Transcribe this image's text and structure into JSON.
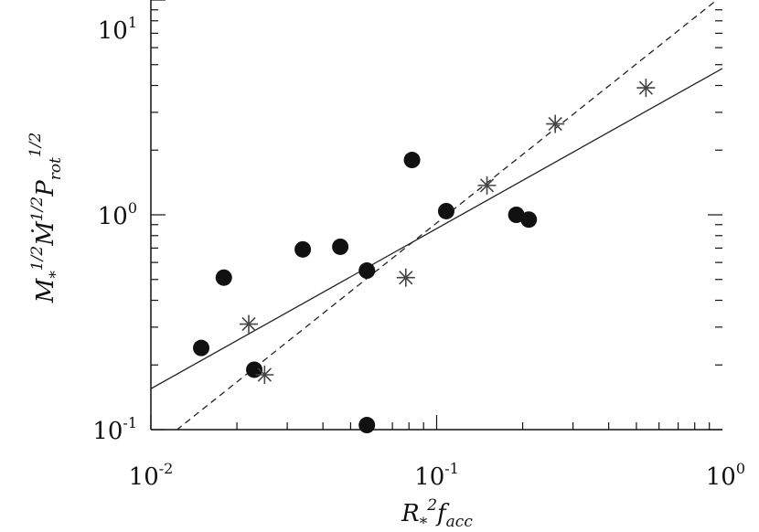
{
  "chart_data": {
    "type": "scatter",
    "xlabel": "R*²facc",
    "ylabel": "M*^1/2 Ṁ^1/2 Prot^1/2",
    "x_scale": "log",
    "y_scale": "log",
    "xlim": [
      0.01,
      1
    ],
    "ylim": [
      0.1,
      10
    ],
    "x_ticks": [
      {
        "value": 0.01,
        "base": "10",
        "exp": "-2"
      },
      {
        "value": 0.1,
        "base": "10",
        "exp": "-1"
      },
      {
        "value": 1,
        "base": "10",
        "exp": "0"
      }
    ],
    "y_ticks": [
      {
        "value": 0.1,
        "base": "10",
        "exp": "-1"
      },
      {
        "value": 1,
        "base": "10",
        "exp": "0"
      },
      {
        "value": 10,
        "base": "10",
        "exp": "1"
      }
    ],
    "grid": false,
    "series": [
      {
        "marker": "filled-circle",
        "color": "#111111",
        "points": [
          {
            "x": 0.015,
            "y": 0.24
          },
          {
            "x": 0.018,
            "y": 0.51
          },
          {
            "x": 0.023,
            "y": 0.19
          },
          {
            "x": 0.034,
            "y": 0.69
          },
          {
            "x": 0.046,
            "y": 0.71
          },
          {
            "x": 0.057,
            "y": 0.55
          },
          {
            "x": 0.057,
            "y": 0.105
          },
          {
            "x": 0.082,
            "y": 1.8
          },
          {
            "x": 0.108,
            "y": 1.04
          },
          {
            "x": 0.19,
            "y": 1.0
          },
          {
            "x": 0.21,
            "y": 0.95
          }
        ]
      },
      {
        "marker": "asterisk",
        "color": "#444444",
        "points": [
          {
            "x": 0.022,
            "y": 0.31
          },
          {
            "x": 0.025,
            "y": 0.18
          },
          {
            "x": 0.078,
            "y": 0.51
          },
          {
            "x": 0.15,
            "y": 1.37
          },
          {
            "x": 0.26,
            "y": 2.65
          },
          {
            "x": 0.54,
            "y": 3.9
          }
        ]
      }
    ],
    "fits": [
      {
        "style": "solid",
        "color": "#222222",
        "x": [
          0.01,
          1
        ],
        "y": [
          0.155,
          4.8
        ]
      },
      {
        "style": "dashed",
        "color": "#222222",
        "x": [
          0.01,
          1
        ],
        "y": [
          0.08,
          10.5
        ]
      }
    ]
  }
}
